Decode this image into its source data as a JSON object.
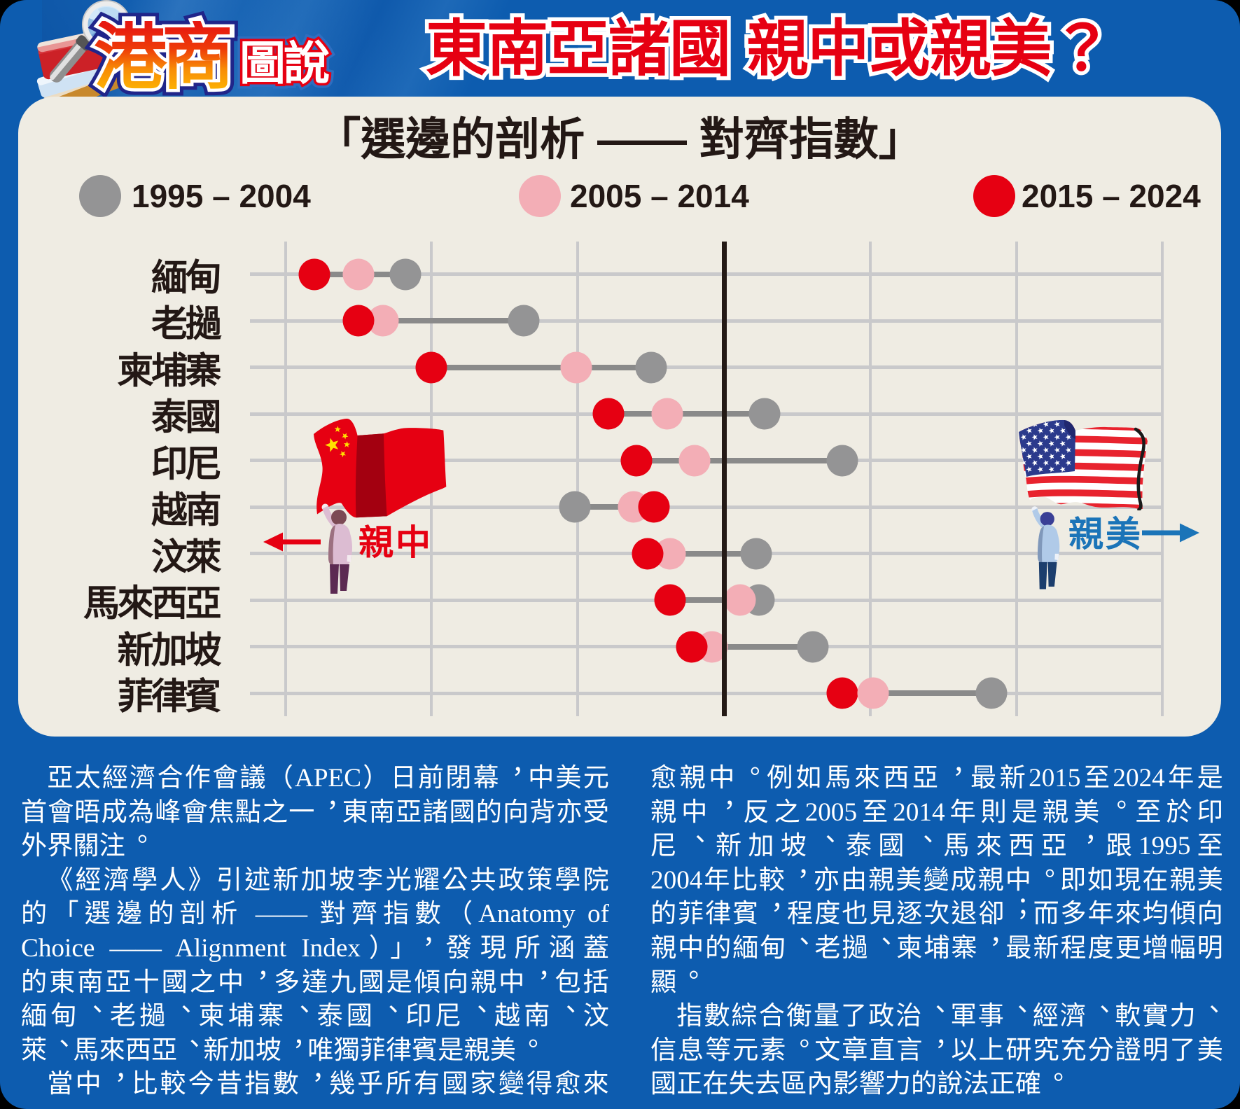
{
  "page": {
    "brand_main": "港商",
    "brand_sub": "圖說",
    "brand_icon": "magnifier-books-icon",
    "title": "東南亞諸國 親中或親美？"
  },
  "chart_data": {
    "type": "scatter",
    "subtype": "dumbbell-dot-plot",
    "title": "「選邊的剖析 —— 對齊指數」",
    "legend": [
      {
        "key": "gray",
        "label": "1995 – 2004",
        "color": "#949495"
      },
      {
        "key": "pink",
        "label": "2005 – 2014",
        "color": "#f3aeb6"
      },
      {
        "key": "red",
        "label": "2015 – 2024",
        "color": "#e60012"
      }
    ],
    "layout_hints": {
      "orientation": "horizontal rows, one per country",
      "x_axis": "alignment index, unlabeled gridlines, thick dark centre line = neutral",
      "gridlines": 7,
      "left_means": "pro-China (親中)",
      "right_means": "pro-US (親美)"
    },
    "categories": [
      "緬甸",
      "老撾",
      "柬埔寨",
      "泰國",
      "印尼",
      "越南",
      "汶萊",
      "馬來西亞",
      "新加坡",
      "菲律賓"
    ],
    "series": [
      {
        "key": "gray",
        "name": "1995 – 2004",
        "values": [
          -2.18,
          -1.37,
          -0.5,
          0.28,
          0.81,
          -1.02,
          0.22,
          0.24,
          0.61,
          1.83
        ]
      },
      {
        "key": "pink",
        "name": "2005 – 2014",
        "values": [
          -2.5,
          -2.33,
          -1.01,
          -0.39,
          -0.2,
          -0.62,
          -0.37,
          0.11,
          -0.08,
          1.02
        ]
      },
      {
        "key": "red",
        "name": "2015 – 2024",
        "values": [
          -2.8,
          -2.5,
          -2.0,
          -0.79,
          -0.6,
          -0.48,
          -0.52,
          -0.37,
          -0.22,
          0.81
        ]
      }
    ],
    "dot_top_series": [
      null,
      "red",
      null,
      null,
      null,
      "red",
      "red",
      "pink",
      "red",
      "pink"
    ],
    "annotations": {
      "pro_china": {
        "label": "親中",
        "color": "#e60012",
        "arrow": "left-arrow-icon",
        "flag": "china-flag-icon"
      },
      "pro_us": {
        "label": "親美",
        "color": "#1b74b8",
        "arrow": "right-arrow-icon",
        "flag": "us-flag-icon"
      }
    }
  },
  "article": {
    "left_lines": [
      {
        "text": "亞太經濟合作會議（APEC）日前閉幕，中美元",
        "indent": true,
        "justify": true
      },
      {
        "text": "首會晤成為峰會焦點之一，東南亞諸國的向背亦受",
        "indent": false,
        "justify": true
      },
      {
        "text": "外界關注。",
        "indent": false,
        "justify": false
      },
      {
        "text": "《經濟學人》引述新加坡李光耀公共政策學院",
        "indent": true,
        "justify": true
      },
      {
        "text": "的「選邊的剖析 —— 對齊指數（Anatomy of",
        "indent": false,
        "justify": true
      },
      {
        "text": "Choice —— Alignment Index）」，發現所涵蓋",
        "indent": false,
        "justify": true
      },
      {
        "text": "的東南亞十國之中，多達九國是傾向親中，包括",
        "indent": false,
        "justify": true
      },
      {
        "text": "緬甸、老撾、柬埔寨、泰國、印尼、越南、汶",
        "indent": false,
        "justify": true
      },
      {
        "text": "萊、馬來西亞、新加坡，唯獨菲律賓是親美。",
        "indent": false,
        "justify": false
      },
      {
        "text": "當中，比較今昔指數，幾乎所有國家變得愈來",
        "indent": true,
        "justify": true
      }
    ],
    "right_lines": [
      {
        "text": "愈親中。例如馬來西亞，最新2015至2024年是",
        "indent": false,
        "justify": true
      },
      {
        "text": "親中，反之2005至2014年則是親美。至於印",
        "indent": false,
        "justify": true
      },
      {
        "text": "尼、新加坡、泰國、馬來西亞，跟1995至",
        "indent": false,
        "justify": true
      },
      {
        "text": "2004年比較，亦由親美變成親中。即如現在親美",
        "indent": false,
        "justify": true
      },
      {
        "text": "的菲律賓，程度也見逐次退卻；而多年來均傾向",
        "indent": false,
        "justify": true
      },
      {
        "text": "親中的緬甸、老撾、柬埔寨，最新程度更增幅明",
        "indent": false,
        "justify": true
      },
      {
        "text": "顯。",
        "indent": false,
        "justify": false
      },
      {
        "text": "指數綜合衡量了政治、軍事、經濟、軟實力、",
        "indent": true,
        "justify": true
      },
      {
        "text": "信息等元素。文章直言，以上研究充分證明了美",
        "indent": false,
        "justify": true
      },
      {
        "text": "國正在失去區內影響力的說法正確。",
        "indent": false,
        "justify": false
      }
    ]
  },
  "colors": {
    "poster_blue": "#0d5caf",
    "panel_cream": "#efece3",
    "red": "#e60012",
    "pink": "#f3aeb6",
    "gray": "#949495",
    "gridline": "#c9c9cb",
    "connector": "#8a8a8a",
    "centerline": "#241a16",
    "ink": "#231815",
    "us_blue": "#1b74b8",
    "cn_flag_fold": "#a30010",
    "cn_star_yellow": "#ffe100",
    "us_canton_blue": "#2b3a8c",
    "us_stripe_red": "#e8232e"
  }
}
